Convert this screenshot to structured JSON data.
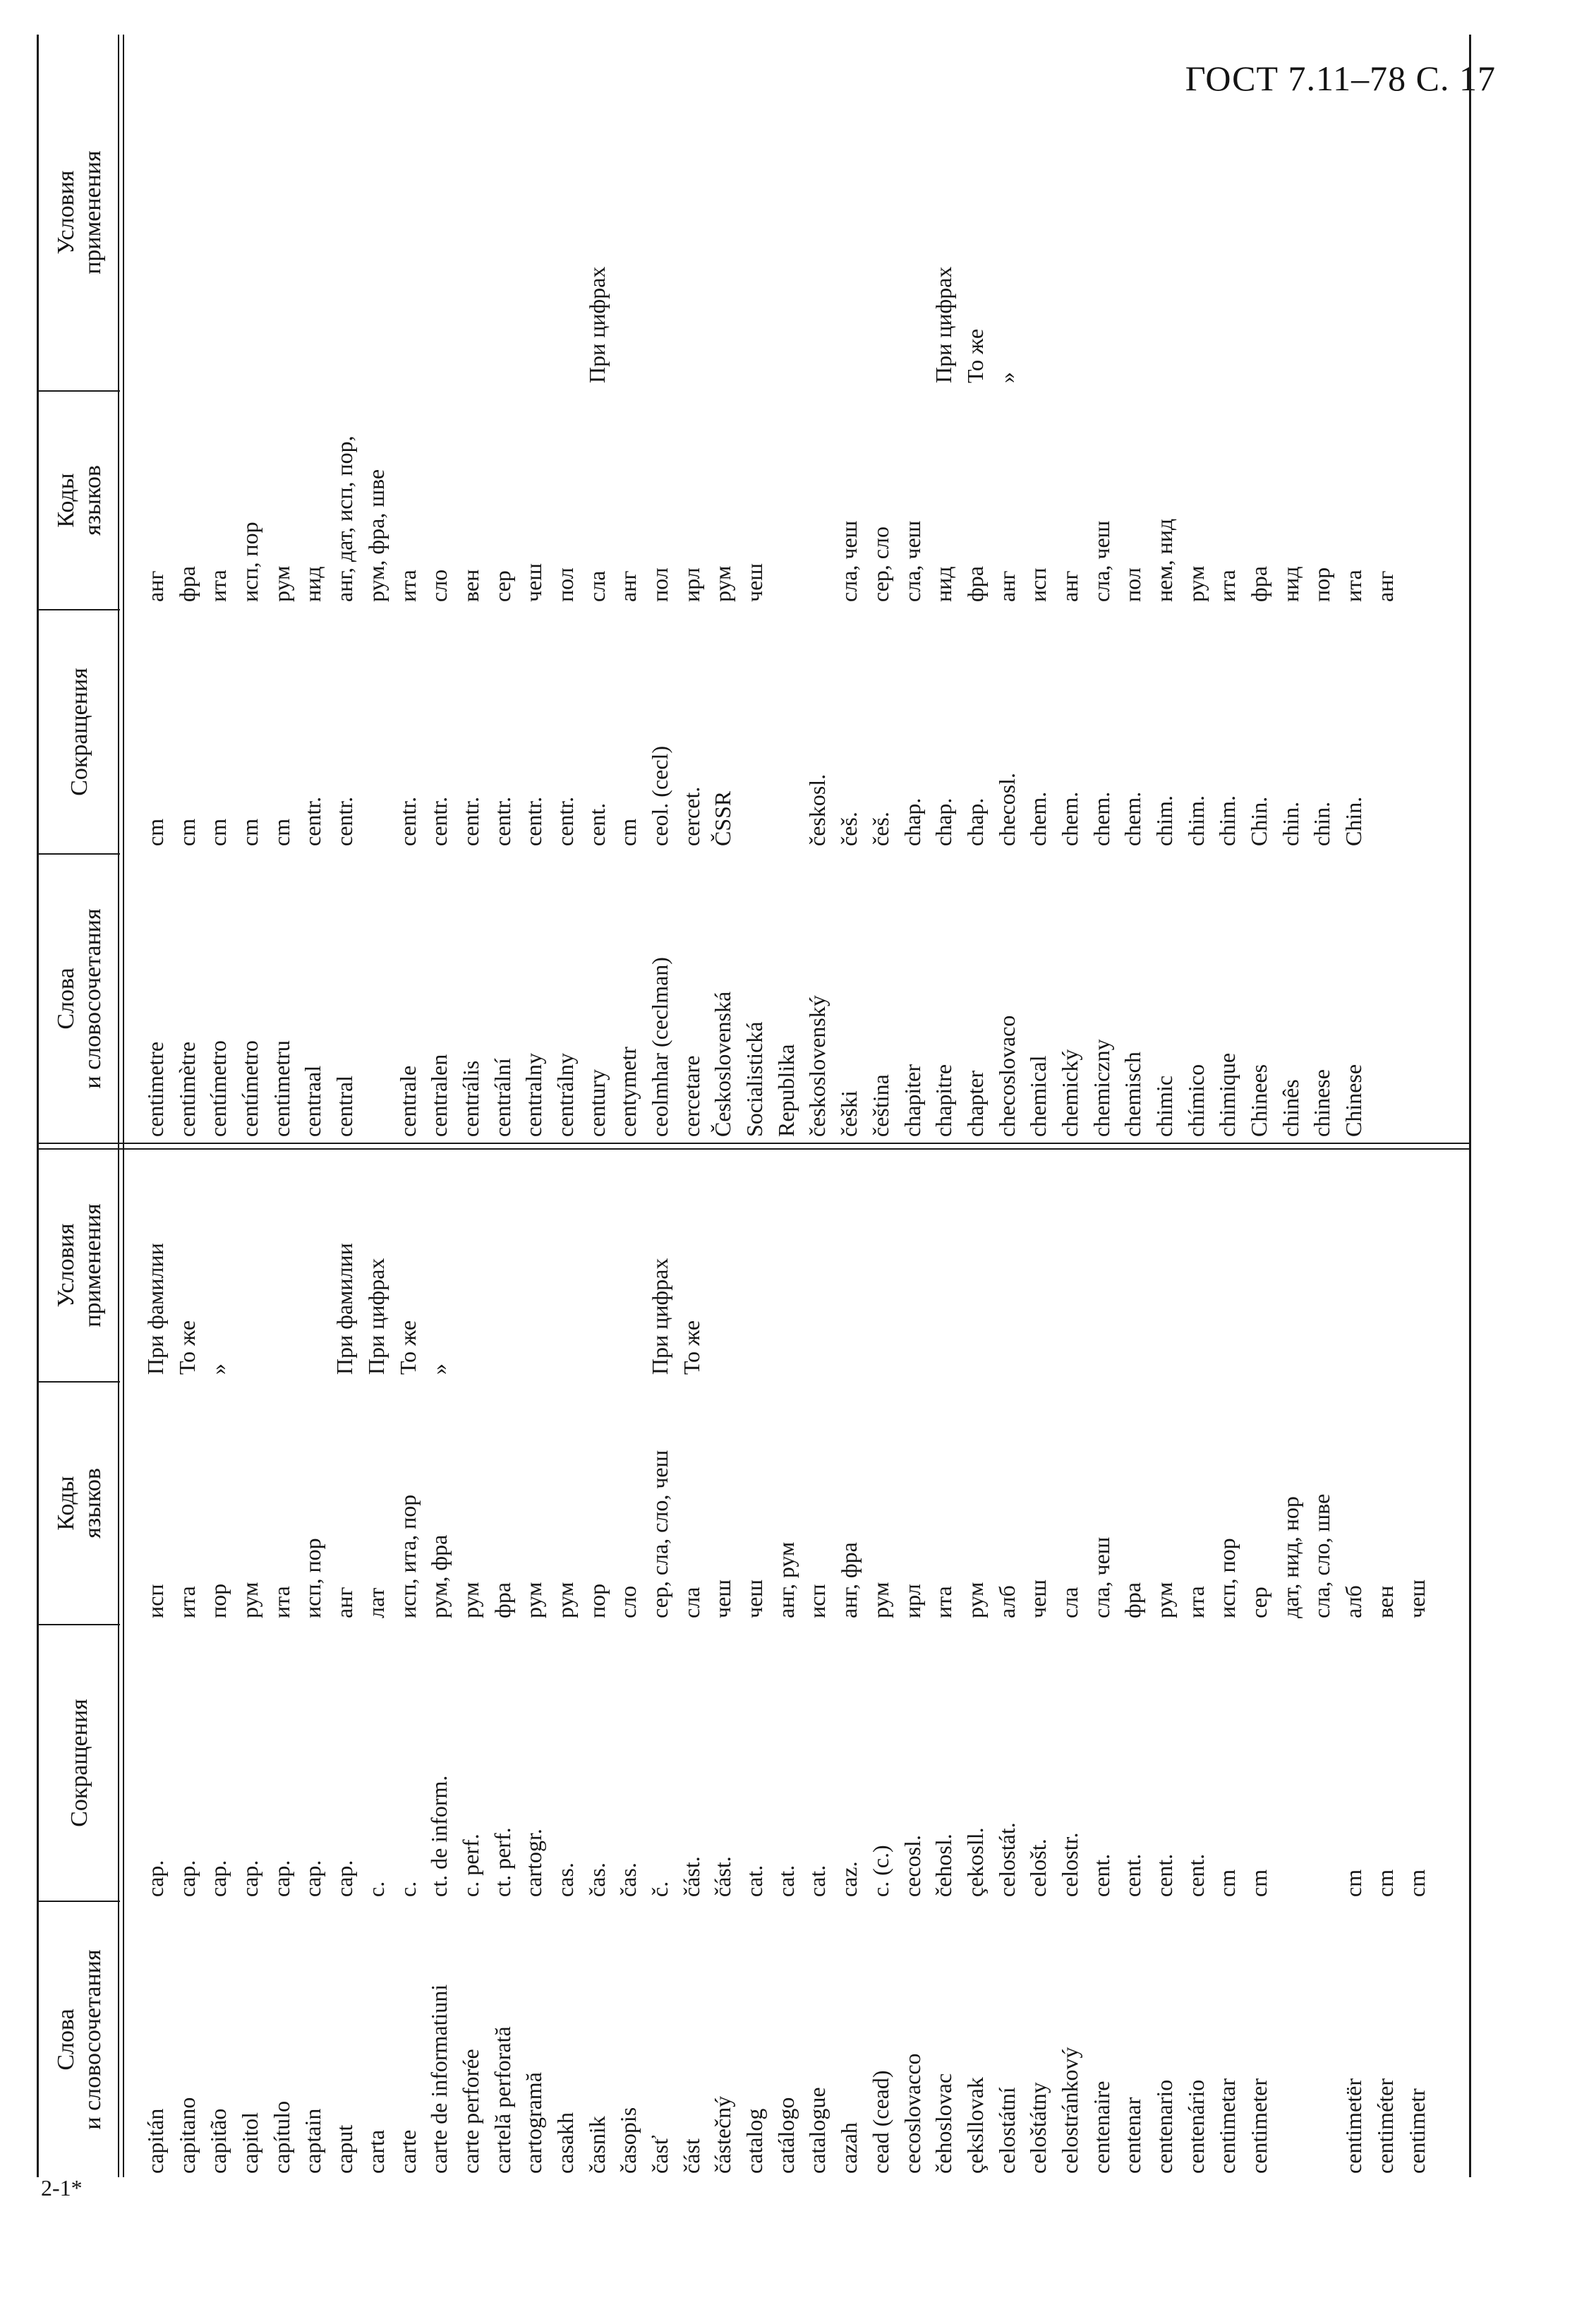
{
  "page_header": "ГОСТ 7.11–78 С. 17",
  "footer_mark": "2-1*",
  "headers": {
    "words": [
      "Слова",
      "и словосочетания"
    ],
    "abbrev": [
      "Сокращения"
    ],
    "codes": [
      "Коды",
      "языков"
    ],
    "usage": [
      "Условия",
      "применения"
    ]
  },
  "left_table": {
    "words": [
      "capitán",
      "capitano",
      "capitão",
      "capitol",
      "capítulo",
      "captain",
      "caput",
      "carta",
      "carte",
      "carte de informatiuni",
      "carte perforée",
      "cartelă perforată",
      "cartogramă",
      "casakh",
      "časnik",
      "časopis",
      "časť",
      "část",
      "částečný",
      "catalog",
      "catálogo",
      "catalogue",
      "cazah",
      "cead (cead)",
      "cecoslovacco",
      "čehoslovac",
      "çeksllovak",
      "celostátní",
      "celoštátny",
      "celostránkový",
      "centenaire",
      "centenar",
      "centenario",
      "centenário",
      "centimetar",
      "centimeter",
      "",
      "",
      "centimetër",
      "centiméter",
      "centimetr"
    ],
    "abbrevs": [
      "cap.",
      "cap.",
      "cap.",
      "cap.",
      "cap.",
      "cap.",
      "cap.",
      "c.",
      "c.",
      "ct. de inform.",
      "c. perf.",
      "ct. perf.",
      "cartogr.",
      "cas.",
      "čas.",
      "čas.",
      "č.",
      "část.",
      "část.",
      "cat.",
      "cat.",
      "cat.",
      "caz.",
      "c. (c.)",
      "cecosl.",
      "čehosl.",
      "çekosll.",
      "celostát.",
      "celošt.",
      "celostr.",
      "cent.",
      "cent.",
      "cent.",
      "cent.",
      "cm",
      "cm",
      "",
      "",
      "cm",
      "cm",
      "cm"
    ],
    "codes": [
      "исп",
      "ита",
      "пор",
      "рум",
      "ита",
      "исп, пор",
      "анг",
      "лат",
      "исп, ита, пор",
      "рум, фра",
      "рум",
      "фра",
      "рум",
      "рум",
      "пор",
      "сло",
      "сер, сла, сло, чеш",
      "сла",
      "чеш",
      "чеш",
      "анг, рум",
      "исп",
      "анг, фра",
      "рум",
      "ирл",
      "ита",
      "рум",
      "алб",
      "чеш",
      "сла",
      "сла, чеш",
      "фра",
      "рум",
      "ита",
      "исп, пор",
      "сер",
      "дат, нид, нор",
      "сла, сло, шве",
      "алб",
      "вен",
      "чеш"
    ],
    "usage": [
      "При фамилии",
      "То же",
      "»",
      "",
      "",
      "",
      "При фамилии",
      "При цифрах",
      "То же",
      "»",
      "",
      "",
      "",
      "",
      "",
      "",
      "При цифрах",
      "То же",
      "",
      "",
      "",
      "",
      "",
      "",
      "",
      "",
      "",
      "",
      "",
      "",
      "",
      "",
      "",
      "",
      "",
      "",
      "",
      "",
      "",
      "",
      ""
    ]
  },
  "right_table": {
    "words": [
      "centimetre",
      "centimètre",
      "centímetro",
      "centímetro",
      "centimetru",
      "centraal",
      "central",
      "",
      "centrale",
      "centralen",
      "centrális",
      "centrální",
      "centralny",
      "centrálny",
      "century",
      "centymetr",
      "ceolmhar (ceclman)",
      "cercetare",
      "Československá",
      "Socialistická",
      "Republika",
      "československý",
      "češki",
      "čeština",
      "chapiter",
      "chapitre",
      "chapter",
      "checoslovaco",
      "chemical",
      "chemický",
      "chemiczny",
      "chemisch",
      "chimic",
      "chímico",
      "chimique",
      "Chinees",
      "chinês",
      "chinese",
      "Chinese"
    ],
    "abbrevs": [
      "cm",
      "cm",
      "cm",
      "cm",
      "cm",
      "centr.",
      "centr.",
      "",
      "centr.",
      "centr.",
      "centr.",
      "centr.",
      "centr.",
      "centr.",
      "cent.",
      "cm",
      "ceol. (cecl)",
      "cercet.",
      "ČSSR",
      "",
      "",
      "českosl.",
      "češ.",
      "češ.",
      "chap.",
      "chap.",
      "chap.",
      "checosl.",
      "chem.",
      "chem.",
      "chem.",
      "chem.",
      "chim.",
      "chim.",
      "chim.",
      "Chin.",
      "chin.",
      "chin.",
      "Chin."
    ],
    "codes": [
      "анг",
      "фра",
      "ита",
      "исп, пор",
      "рум",
      "нид",
      "анг, дат, исп, пор,",
      "рум, фра, шве",
      "ита",
      "сло",
      "вен",
      "сер",
      "чеш",
      "пол",
      "сла",
      "анг",
      "пол",
      "ирл",
      "рум",
      "чеш",
      "",
      "",
      "сла, чеш",
      "сер, сло",
      "сла, чеш",
      "нид",
      "фра",
      "анг",
      "исп",
      "анг",
      "сла, чеш",
      "пол",
      "нем, нид",
      "рум",
      "ита",
      "фра",
      "нид",
      "пор",
      "ита",
      "анг"
    ],
    "usage": [
      "",
      "",
      "",
      "",
      "",
      "",
      "",
      "",
      "",
      "",
      "",
      "",
      "",
      "",
      "При цифрах",
      "",
      "",
      "",
      "",
      "",
      "",
      "",
      "",
      "",
      "",
      "При цифрах",
      "То же",
      "»",
      "",
      "",
      "",
      "",
      "",
      "",
      "",
      "",
      "",
      "",
      ""
    ]
  }
}
